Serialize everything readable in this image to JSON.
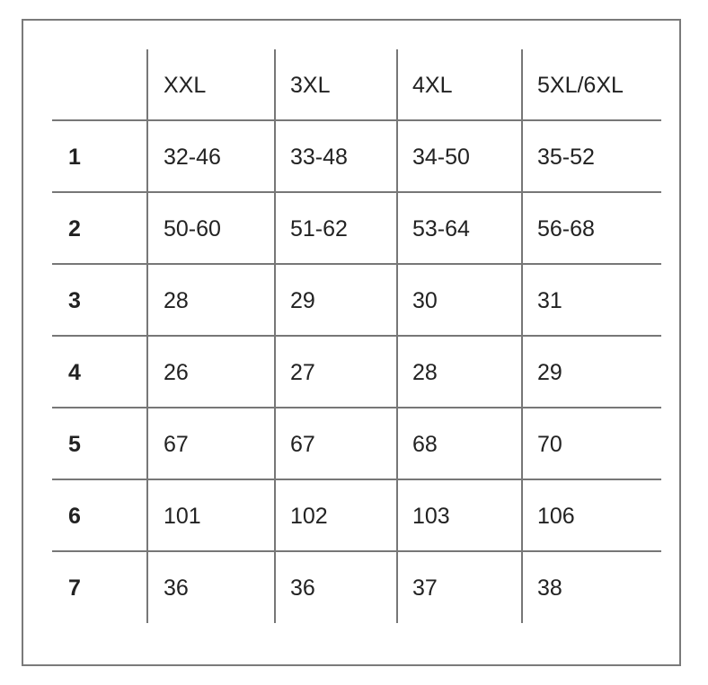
{
  "table": {
    "headers": [
      "",
      "XXL",
      "3XL",
      "4XL",
      "5XL/6XL"
    ],
    "rows": [
      {
        "label": "1",
        "values": [
          "32-46",
          "33-48",
          "34-50",
          "35-52"
        ]
      },
      {
        "label": "2",
        "values": [
          "50-60",
          "51-62",
          "53-64",
          "56-68"
        ]
      },
      {
        "label": "3",
        "values": [
          "28",
          "29",
          "30",
          "31"
        ]
      },
      {
        "label": "4",
        "values": [
          "26",
          "27",
          "28",
          "29"
        ]
      },
      {
        "label": "5",
        "values": [
          "67",
          "67",
          "68",
          "70"
        ]
      },
      {
        "label": "6",
        "values": [
          "101",
          "102",
          "103",
          "106"
        ]
      },
      {
        "label": "7",
        "values": [
          "36",
          "36",
          "37",
          "38"
        ]
      }
    ]
  }
}
